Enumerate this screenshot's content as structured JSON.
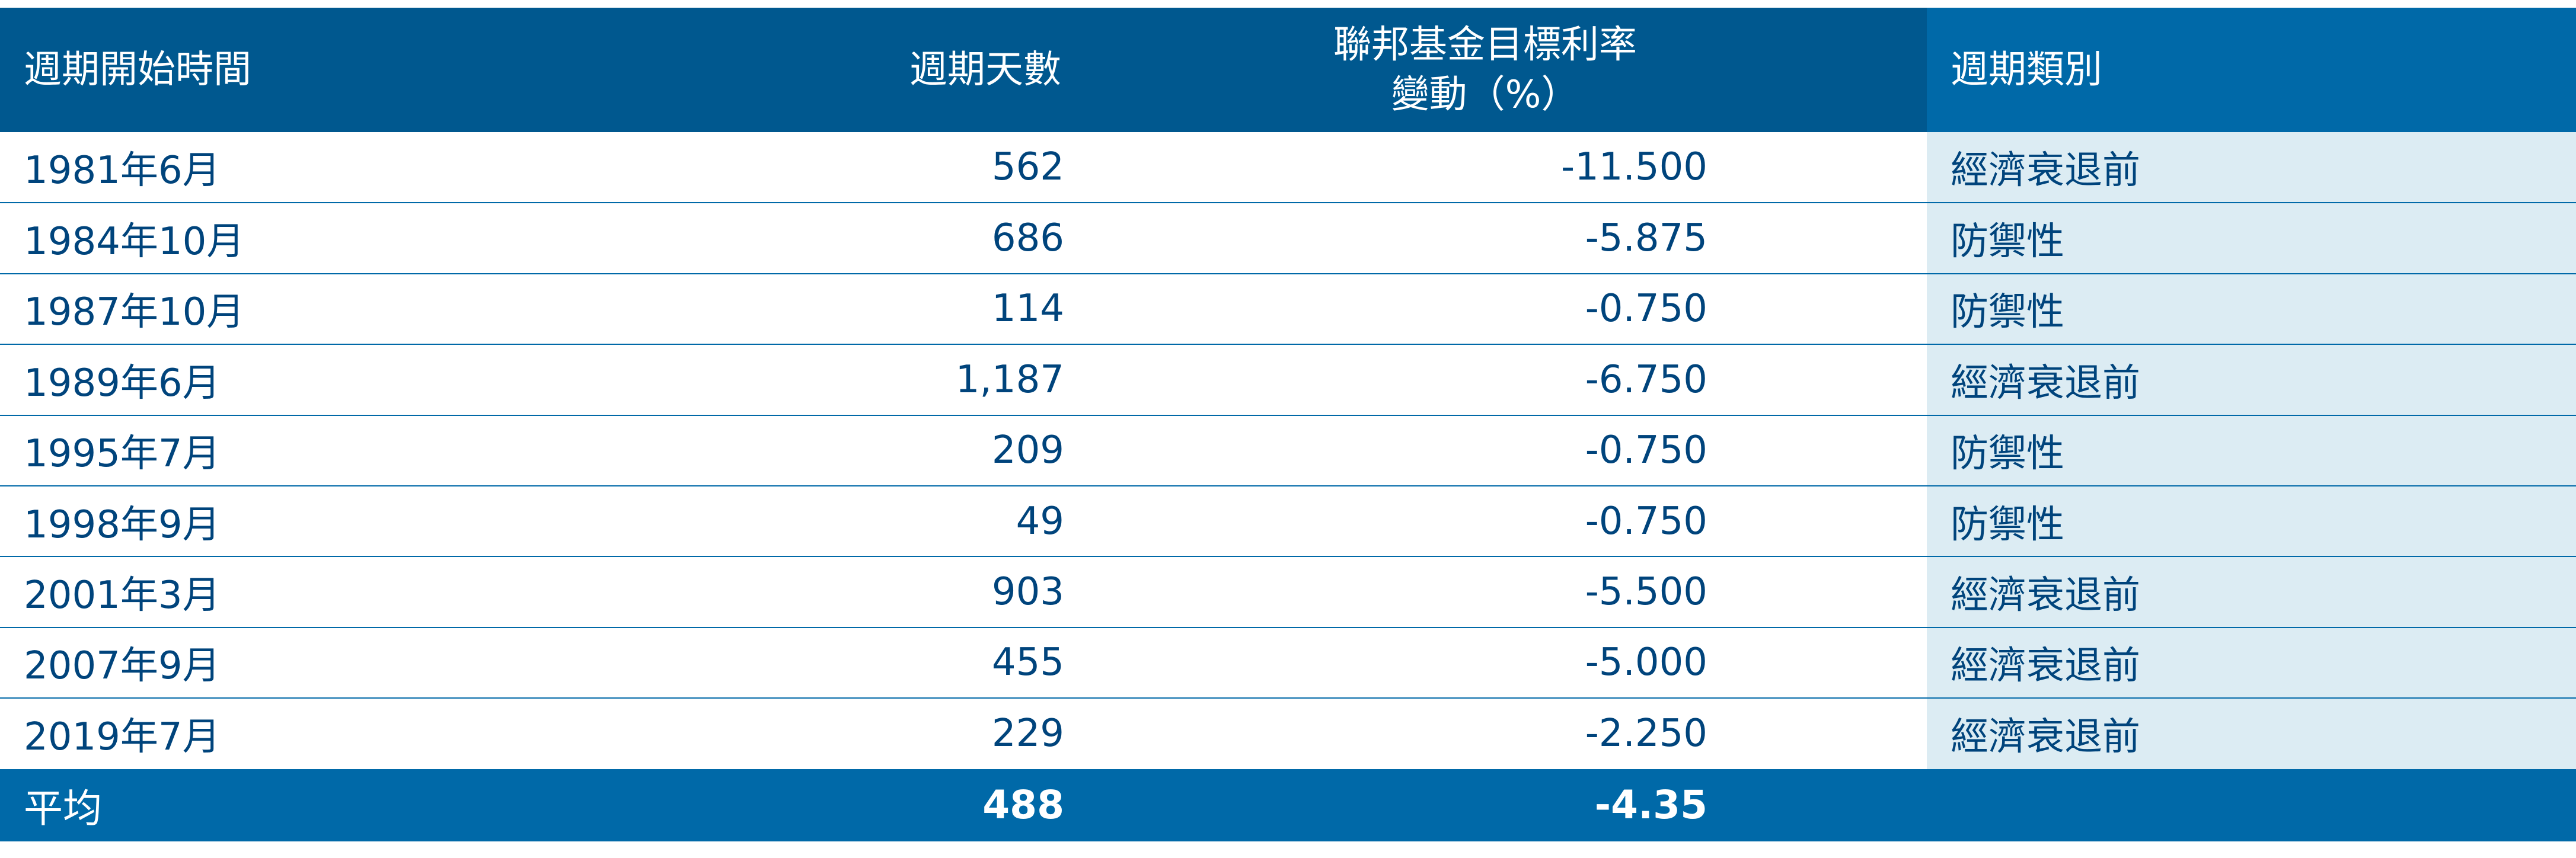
{
  "headers": {
    "start": "週期開始時間",
    "days": "週期天數",
    "rate_line1": "聯邦基金目標利率",
    "rate_line2": "變動（%）",
    "category": "週期類別"
  },
  "rows": [
    {
      "start": "1981年6月",
      "days": "562",
      "rate": "-11.500",
      "category": "經濟衰退前"
    },
    {
      "start": "1984年10月",
      "days": "686",
      "rate": "-5.875",
      "category": "防禦性"
    },
    {
      "start": "1987年10月",
      "days": "114",
      "rate": "-0.750",
      "category": "防禦性"
    },
    {
      "start": "1989年6月",
      "days": "1,187",
      "rate": "-6.750",
      "category": "經濟衰退前"
    },
    {
      "start": "1995年7月",
      "days": "209",
      "rate": "-0.750",
      "category": "防禦性"
    },
    {
      "start": "1998年9月",
      "days": "49",
      "rate": "-0.750",
      "category": "防禦性"
    },
    {
      "start": "2001年3月",
      "days": "903",
      "rate": "-5.500",
      "category": "經濟衰退前"
    },
    {
      "start": "2007年9月",
      "days": "455",
      "rate": "-5.000",
      "category": "經濟衰退前"
    },
    {
      "start": "2019年7月",
      "days": "229",
      "rate": "-2.250",
      "category": "經濟衰退前"
    }
  ],
  "footer": {
    "label": "平均",
    "days": "488",
    "rate": "-4.35"
  },
  "colors": {
    "header": "#00588f",
    "header_category": "#0069a8",
    "footer": "#0069a8",
    "text": "#00447c",
    "category_cell": "#dcecf3"
  }
}
